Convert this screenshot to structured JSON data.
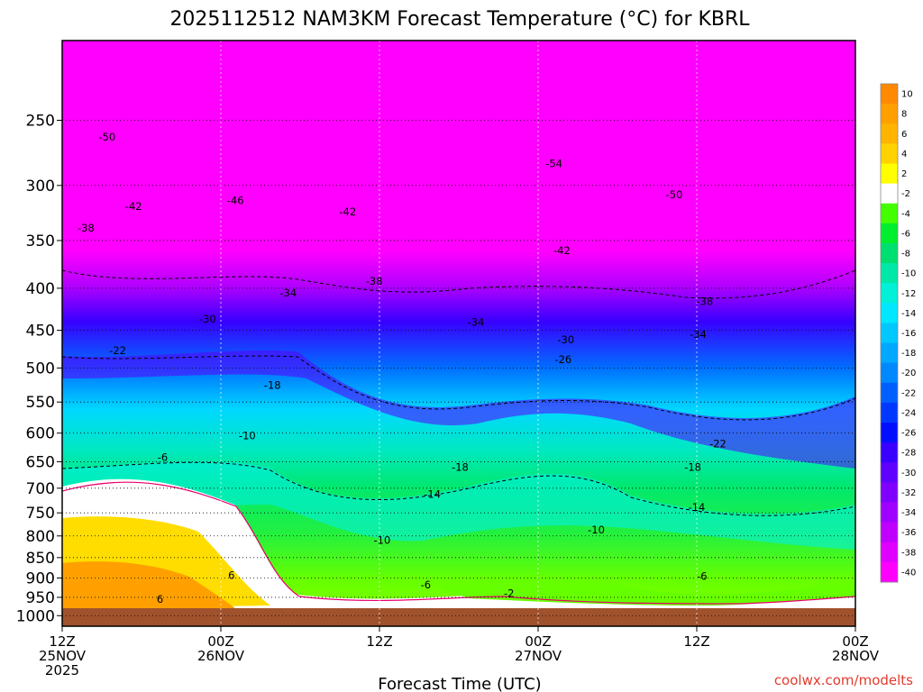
{
  "chart_data": {
    "type": "heatmap",
    "title": "2025112512 NAM3KM Forecast Temperature (°C) for KBRL",
    "xlabel": "Forecast Time (UTC)",
    "ylabel": "",
    "x_ticks": [
      {
        "hours": 0,
        "lines": [
          "12Z",
          "25NOV",
          "2025"
        ]
      },
      {
        "hours": 12,
        "lines": [
          "00Z",
          "26NOV"
        ]
      },
      {
        "hours": 24,
        "lines": [
          "12Z"
        ]
      },
      {
        "hours": 36,
        "lines": [
          "00Z",
          "27NOV"
        ]
      },
      {
        "hours": 48,
        "lines": [
          "12Z"
        ]
      },
      {
        "hours": 60,
        "lines": [
          "00Z",
          "28NOV"
        ]
      }
    ],
    "xlim": [
      0,
      60
    ],
    "y_ticks": [
      250,
      300,
      350,
      400,
      450,
      500,
      550,
      600,
      650,
      700,
      750,
      800,
      850,
      900,
      950,
      1000
    ],
    "ylim": [
      1030,
      200
    ],
    "y_scale": "log",
    "grid": true,
    "colorbar": {
      "levels": [
        10,
        8,
        6,
        4,
        2,
        -2,
        -4,
        -6,
        -8,
        -10,
        -12,
        -14,
        -16,
        -18,
        -20,
        -22,
        -24,
        -26,
        -28,
        -30,
        -32,
        -34,
        -36,
        -38,
        -40
      ],
      "colors": [
        "#ff8a00",
        "#ffa000",
        "#ffb400",
        "#ffd200",
        "#ffff00",
        "#ffffff",
        "#44ff00",
        "#00ee30",
        "#00e070",
        "#00e8a8",
        "#00f0d8",
        "#00e8ff",
        "#00c8ff",
        "#00a8ff",
        "#0088ff",
        "#0060ff",
        "#0038ff",
        "#0010ff",
        "#3a00ff",
        "#6000ff",
        "#8000ff",
        "#a000ff",
        "#c000ff",
        "#e000ff",
        "#ff00ff"
      ]
    },
    "contour_labels": [
      {
        "t": 3.4,
        "p": 262,
        "label": "-50"
      },
      {
        "t": 5.4,
        "p": 318,
        "label": "-42"
      },
      {
        "t": 1.8,
        "p": 338,
        "label": "-38"
      },
      {
        "t": 13.1,
        "p": 313,
        "label": "-46"
      },
      {
        "t": 21.6,
        "p": 323,
        "label": "-42"
      },
      {
        "t": 37.2,
        "p": 282,
        "label": "-54"
      },
      {
        "t": 46.3,
        "p": 308,
        "label": "-50"
      },
      {
        "t": 37.8,
        "p": 360,
        "label": "-42"
      },
      {
        "t": 23.6,
        "p": 392,
        "label": "-38"
      },
      {
        "t": 48.6,
        "p": 415,
        "label": "-38"
      },
      {
        "t": 17.1,
        "p": 405,
        "label": "-34"
      },
      {
        "t": 31.3,
        "p": 440,
        "label": "-34"
      },
      {
        "t": 48.1,
        "p": 455,
        "label": "-34"
      },
      {
        "t": 11.0,
        "p": 436,
        "label": "-30"
      },
      {
        "t": 38.1,
        "p": 462,
        "label": "-30"
      },
      {
        "t": 37.9,
        "p": 488,
        "label": "-26"
      },
      {
        "t": 4.2,
        "p": 476,
        "label": "-22"
      },
      {
        "t": 49.6,
        "p": 618,
        "label": "-22"
      },
      {
        "t": 15.9,
        "p": 525,
        "label": "-18"
      },
      {
        "t": 30.1,
        "p": 660,
        "label": "-18"
      },
      {
        "t": 47.7,
        "p": 660,
        "label": "-18"
      },
      {
        "t": 14.0,
        "p": 604,
        "label": "-10"
      },
      {
        "t": 7.6,
        "p": 642,
        "label": "-6"
      },
      {
        "t": 28.0,
        "p": 712,
        "label": "-14"
      },
      {
        "t": 48.0,
        "p": 738,
        "label": "-14"
      },
      {
        "t": 24.2,
        "p": 810,
        "label": "-10"
      },
      {
        "t": 40.4,
        "p": 786,
        "label": "-10"
      },
      {
        "t": 27.5,
        "p": 917,
        "label": "-6"
      },
      {
        "t": 48.4,
        "p": 895,
        "label": "-6"
      },
      {
        "t": 12.8,
        "p": 893,
        "label": "6"
      },
      {
        "t": 7.4,
        "p": 955,
        "label": "6"
      },
      {
        "t": 33.8,
        "p": 940,
        "label": "-2"
      }
    ]
  },
  "credit": "coolwx.com/modelts"
}
